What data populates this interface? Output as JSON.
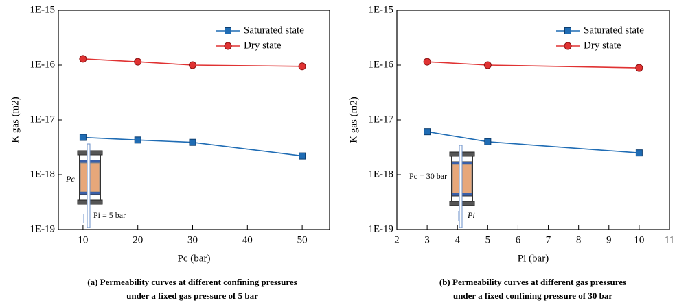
{
  "chart_data": [
    {
      "type": "line",
      "y_scale": "log",
      "xlabel": "Pc (bar)",
      "ylabel": "K gas (m2)",
      "xlim": [
        5.5,
        55
      ],
      "xticks": [
        10,
        20,
        30,
        40,
        50
      ],
      "ylim": [
        1e-19,
        1e-15
      ],
      "yticks": [
        {
          "value": 1e-19,
          "label": "1E-19"
        },
        {
          "value": 1e-18,
          "label": "1E-18"
        },
        {
          "value": 1e-17,
          "label": "1E-17"
        },
        {
          "value": 1e-16,
          "label": "1E-16"
        },
        {
          "value": 1e-15,
          "label": "1E-15"
        }
      ],
      "legend": "upper right",
      "series": [
        {
          "name": "Saturated state",
          "color": "#1f6cb4",
          "marker": "square",
          "x": [
            10,
            20,
            30,
            50
          ],
          "values": [
            4.8e-18,
            4.3e-18,
            3.9e-18,
            2.2e-18
          ]
        },
        {
          "name": "Dry state",
          "color": "#e03232",
          "marker": "circle",
          "x": [
            10,
            20,
            30,
            50
          ],
          "values": [
            1.3e-16,
            1.15e-16,
            1e-16,
            9.5e-17
          ]
        }
      ],
      "annotations": [
        "Pc",
        "Pi = 5 bar"
      ],
      "caption": [
        "(a) Permeability curves at different confining pressures",
        "under a fixed gas pressure of 5 bar"
      ]
    },
    {
      "type": "line",
      "y_scale": "log",
      "xlabel": "Pi (bar)",
      "ylabel": "K gas (m2)",
      "xlim": [
        2,
        11
      ],
      "xticks": [
        2,
        3,
        4,
        5,
        6,
        7,
        8,
        9,
        10,
        11
      ],
      "ylim": [
        1e-19,
        1e-15
      ],
      "yticks": [
        {
          "value": 1e-19,
          "label": "1E-19"
        },
        {
          "value": 1e-18,
          "label": "1E-18"
        },
        {
          "value": 1e-17,
          "label": "1E-17"
        },
        {
          "value": 1e-16,
          "label": "1E-16"
        },
        {
          "value": 1e-15,
          "label": "1E-15"
        }
      ],
      "legend": "upper right",
      "series": [
        {
          "name": "Saturated state",
          "color": "#1f6cb4",
          "marker": "square",
          "x": [
            3,
            5,
            10
          ],
          "values": [
            6.1e-18,
            4e-18,
            2.5e-18
          ]
        },
        {
          "name": "Dry state",
          "color": "#e03232",
          "marker": "circle",
          "x": [
            3,
            5,
            10
          ],
          "values": [
            1.15e-16,
            1e-16,
            8.9e-17
          ]
        }
      ],
      "annotations": [
        "Pc = 30 bar",
        "Pi"
      ],
      "caption": [
        "(b) Permeability curves at different gas pressures",
        "under a fixed confining pressure of 30 bar"
      ]
    }
  ]
}
